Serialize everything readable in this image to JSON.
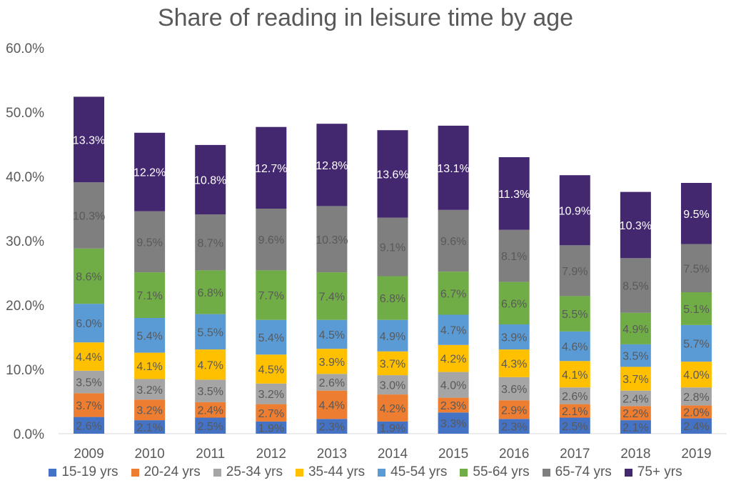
{
  "chart_data": {
    "type": "bar",
    "stacked": true,
    "title": "Share of reading in leisure time by age",
    "xlabel": "",
    "ylabel": "",
    "ylim": [
      0,
      60
    ],
    "yticks": [
      "0.0%",
      "10.0%",
      "20.0%",
      "30.0%",
      "40.0%",
      "50.0%",
      "60.0%"
    ],
    "grid": false,
    "legend_position": "bottom",
    "categories": [
      "2009",
      "2010",
      "2011",
      "2012",
      "2013",
      "2014",
      "2015",
      "2016",
      "2017",
      "2018",
      "2019"
    ],
    "series": [
      {
        "name": "15-19 yrs",
        "color": "#4472C4",
        "label_color": "#595959",
        "values": [
          2.6,
          2.1,
          2.5,
          1.9,
          2.3,
          1.9,
          3.3,
          2.3,
          2.5,
          2.1,
          2.4
        ]
      },
      {
        "name": "20-24 yrs",
        "color": "#ED7D31",
        "label_color": "#595959",
        "values": [
          3.7,
          3.2,
          2.4,
          2.7,
          4.4,
          4.2,
          2.3,
          2.9,
          2.1,
          2.2,
          2.0
        ]
      },
      {
        "name": "25-34 yrs",
        "color": "#A5A5A5",
        "label_color": "#595959",
        "values": [
          3.5,
          3.2,
          3.5,
          3.2,
          2.6,
          3.0,
          4.0,
          3.6,
          2.6,
          2.4,
          2.8
        ]
      },
      {
        "name": "35-44 yrs",
        "color": "#FFC000",
        "label_color": "#595959",
        "values": [
          4.4,
          4.1,
          4.7,
          4.5,
          3.9,
          3.7,
          4.2,
          4.3,
          4.1,
          3.7,
          4.0
        ]
      },
      {
        "name": "45-54 yrs",
        "color": "#5B9BD5",
        "label_color": "#595959",
        "values": [
          6.0,
          5.4,
          5.5,
          5.4,
          4.5,
          4.9,
          4.7,
          3.9,
          4.6,
          3.5,
          5.7
        ]
      },
      {
        "name": "55-64 yrs",
        "color": "#70AD47",
        "label_color": "#595959",
        "values": [
          8.6,
          7.1,
          6.8,
          7.7,
          7.4,
          6.8,
          6.7,
          6.6,
          5.5,
          4.9,
          5.1
        ]
      },
      {
        "name": "65-74 yrs",
        "color": "#7F7F7F",
        "label_color": "#595959",
        "values": [
          10.3,
          9.5,
          8.7,
          9.6,
          10.3,
          9.1,
          9.6,
          8.1,
          7.9,
          8.5,
          7.5
        ]
      },
      {
        "name": "75+ yrs",
        "color": "#44286F",
        "label_color": "#FFFFFF",
        "values": [
          13.3,
          12.2,
          10.8,
          12.7,
          12.8,
          13.6,
          13.1,
          11.3,
          10.9,
          10.3,
          9.5
        ]
      }
    ]
  }
}
